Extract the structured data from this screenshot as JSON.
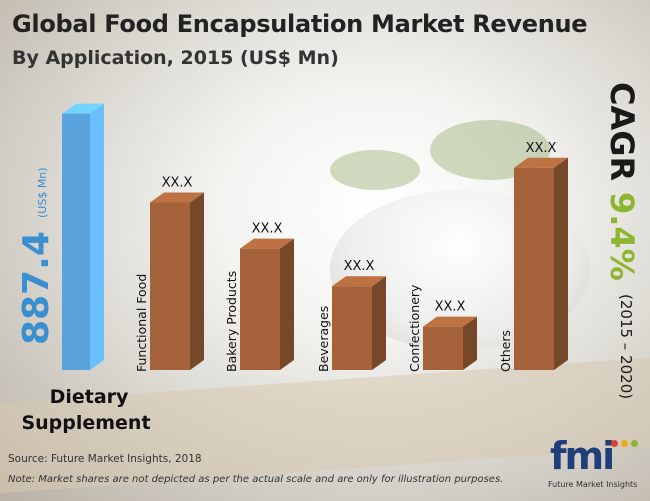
{
  "header": {
    "title": "Global Food Encapsulation Market Revenue",
    "subtitle": "By Application, 2015 (US$ Mn)"
  },
  "highlight": {
    "value": "887.4",
    "unit": "(US$ Mn)",
    "label_line1": "Dietary",
    "label_line2": "Supplement",
    "color": "#5aa2dc"
  },
  "cagr": {
    "label": "CAGR",
    "value": "9.4%",
    "period": "(2015 – 2020)",
    "value_color": "#8db52f"
  },
  "chart_data": {
    "type": "bar",
    "categories": [
      "Dietary Supplement",
      "Functional Food",
      "Bakery Products",
      "Beverages",
      "Confectionery",
      "Others"
    ],
    "values": [
      887.4,
      580,
      420,
      290,
      150,
      700
    ],
    "value_labels": [
      "887.4",
      "XX.X",
      "XX.X",
      "XX.X",
      "XX.X",
      "XX.X"
    ],
    "ylim": [
      0,
      900
    ],
    "colors": {
      "highlight": "#5aa2dc",
      "bar": "#a5623a"
    }
  },
  "footer": {
    "source": "Source: Future Market Insights, 2018",
    "note": "Note: Market shares are not depicted as per the actual scale and are only for illustration purposes."
  },
  "logo": {
    "mark": "fmi",
    "text": "Future Market Insights",
    "dot_colors": [
      "#e33b3b",
      "#f2a81d",
      "#8db52f"
    ]
  }
}
